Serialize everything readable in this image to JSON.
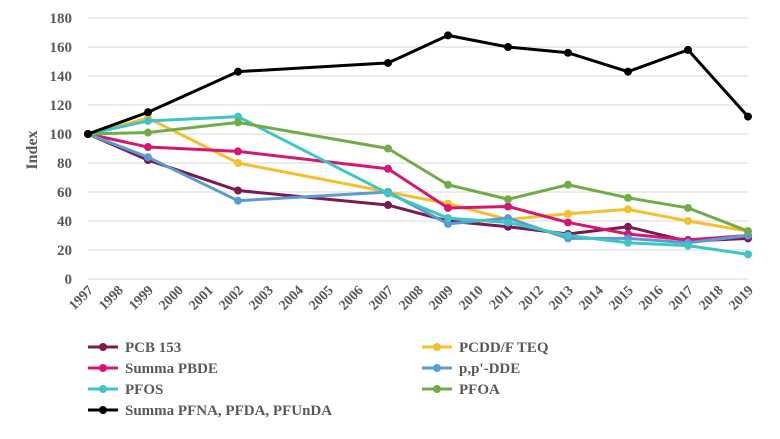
{
  "chart_data": {
    "type": "line",
    "title": "",
    "xlabel": "",
    "ylabel": "Index",
    "ylim": [
      0,
      180
    ],
    "yticks": [
      0,
      20,
      40,
      60,
      80,
      100,
      120,
      140,
      160,
      180
    ],
    "x_categories": [
      "1997",
      "1998",
      "1999",
      "2000",
      "2001",
      "2002",
      "2003",
      "2004",
      "2005",
      "2006",
      "2007",
      "2008",
      "2009",
      "2010",
      "2011",
      "2012",
      "2013",
      "2014",
      "2015",
      "2016",
      "2017",
      "2018",
      "2019"
    ],
    "grid": true,
    "legend_position": "bottom",
    "series": [
      {
        "name": "PCB 153",
        "color": "#7B1A4F",
        "x": [
          "1997",
          "1999",
          "2002",
          "2007",
          "2009",
          "2011",
          "2013",
          "2015",
          "2017",
          "2019"
        ],
        "values": [
          100,
          82,
          61,
          51,
          40,
          36,
          31,
          36,
          26,
          28
        ]
      },
      {
        "name": "PCDD/F TEQ",
        "color": "#F5C02B",
        "x": [
          "1997",
          "1999",
          "2002",
          "2007",
          "2009",
          "2011",
          "2013",
          "2015",
          "2017",
          "2019"
        ],
        "values": [
          100,
          111,
          80,
          60,
          52,
          41,
          45,
          48,
          40,
          33
        ]
      },
      {
        "name": "Summa PBDE",
        "color": "#D6176F",
        "x": [
          "1997",
          "1999",
          "2002",
          "2007",
          "2009",
          "2011",
          "2013",
          "2015",
          "2017",
          "2019"
        ],
        "values": [
          100,
          91,
          88,
          76,
          49,
          50,
          39,
          31,
          27,
          30
        ]
      },
      {
        "name": "p,p'-DDE",
        "color": "#5B9BD5",
        "x": [
          "1997",
          "1999",
          "2002",
          "2007",
          "2009",
          "2011",
          "2013",
          "2015",
          "2017",
          "2019"
        ],
        "values": [
          100,
          84,
          54,
          60,
          38,
          42,
          28,
          28,
          25,
          30
        ]
      },
      {
        "name": "PFOS",
        "color": "#3FC5C5",
        "x": [
          "1997",
          "1999",
          "2002",
          "2007",
          "2009",
          "2011",
          "2013",
          "2015",
          "2017",
          "2019"
        ],
        "values": [
          100,
          109,
          112,
          59,
          42,
          39,
          30,
          25,
          23,
          17
        ]
      },
      {
        "name": "PFOA",
        "color": "#70AD47",
        "x": [
          "1997",
          "1999",
          "2002",
          "2007",
          "2009",
          "2011",
          "2013",
          "2015",
          "2017",
          "2019"
        ],
        "values": [
          100,
          101,
          108,
          90,
          65,
          55,
          65,
          56,
          49,
          33
        ]
      },
      {
        "name": "Summa PFNA, PFDA, PFUnDA",
        "color": "#000000",
        "x": [
          "1997",
          "1999",
          "2002",
          "2007",
          "2009",
          "2011",
          "2013",
          "2015",
          "2017",
          "2019"
        ],
        "values": [
          100,
          115,
          143,
          149,
          168,
          160,
          156,
          143,
          158,
          112
        ]
      }
    ]
  }
}
